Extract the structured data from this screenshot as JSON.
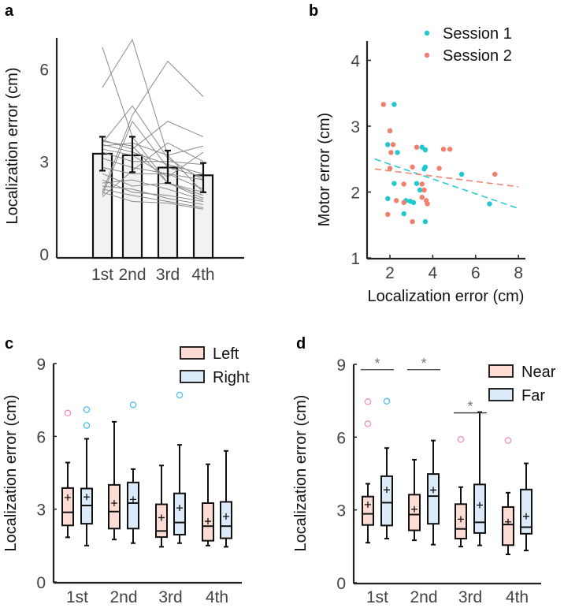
{
  "colors": {
    "session1": "#1fc8cc",
    "session2": "#f07f6c",
    "left_fill": "#fddcd3",
    "right_fill": "#dcebfa",
    "outlier_pink": "#f48cc0",
    "outlier_blue": "#4cc0ee",
    "bar_fill": "#f2f2f2",
    "subject_line": "#8a8a8a"
  },
  "chart_data": [
    {
      "panel": "a",
      "type": "bar",
      "title": "",
      "xlabel": "",
      "ylabel": "Localization error (cm)",
      "ylim": [
        0,
        7
      ],
      "yticks": [
        "0",
        "3",
        "6"
      ],
      "ytick_values": [
        0,
        3,
        6
      ],
      "categories": [
        "1st",
        "2nd",
        "3rd",
        "4th"
      ],
      "values": [
        3.25,
        3.2,
        2.8,
        2.55
      ],
      "error_low": [
        2.7,
        2.65,
        2.3,
        2.0
      ],
      "error_high": [
        3.8,
        3.8,
        3.35,
        2.95
      ],
      "subjects": [
        [
          6.7,
          3.8,
          2.3,
          1.9
        ],
        [
          5.4,
          6.95,
          3.2,
          2.0
        ],
        [
          3.6,
          4.8,
          3.1,
          2.4
        ],
        [
          2.0,
          4.5,
          6.25,
          5.1
        ],
        [
          1.9,
          4.3,
          2.8,
          2.5
        ],
        [
          3.7,
          3.4,
          4.3,
          3.8
        ],
        [
          3.5,
          3.6,
          3.2,
          3.5
        ],
        [
          3.4,
          3.2,
          2.5,
          3.3
        ],
        [
          3.3,
          3.0,
          3.0,
          2.9
        ],
        [
          3.1,
          2.8,
          2.6,
          2.4
        ],
        [
          2.8,
          2.6,
          2.6,
          2.1
        ],
        [
          2.6,
          2.2,
          2.3,
          1.8
        ],
        [
          2.4,
          2.0,
          1.9,
          1.7
        ],
        [
          2.2,
          2.1,
          1.8,
          1.6
        ],
        [
          2.1,
          1.9,
          1.7,
          1.5
        ],
        [
          2.0,
          1.7,
          1.65,
          1.45
        ],
        [
          3.65,
          3.5,
          2.3,
          2.0
        ],
        [
          3.55,
          3.3,
          2.9,
          2.6
        ],
        [
          2.3,
          2.4,
          2.1,
          1.75
        ],
        [
          1.85,
          2.7,
          3.6,
          3.0
        ]
      ]
    },
    {
      "panel": "b",
      "type": "scatter",
      "xlabel": "Localization error (cm)",
      "ylabel": "Motor error (cm)",
      "xlim": [
        1,
        8.4
      ],
      "ylim": [
        1,
        4.3
      ],
      "xticks": [
        "2",
        "4",
        "6",
        "8"
      ],
      "xtick_values": [
        2,
        4,
        6,
        8
      ],
      "yticks": [
        "1",
        "2",
        "3",
        "4"
      ],
      "ytick_values": [
        1,
        2,
        3,
        4
      ],
      "legend_position": "top-right",
      "series": [
        {
          "name": "Session 1",
          "color_key": "session1",
          "points": [
            [
              1.9,
              2.72
            ],
            [
              2.2,
              3.33
            ],
            [
              2.35,
              2.6
            ],
            [
              2.2,
              2.13
            ],
            [
              1.9,
              1.9
            ],
            [
              2.65,
              1.67
            ],
            [
              2.75,
              1.87
            ],
            [
              2.95,
              1.86
            ],
            [
              3.1,
              1.84
            ],
            [
              3.25,
              2.13
            ],
            [
              3.4,
              2.03
            ],
            [
              3.5,
              2.68
            ],
            [
              3.6,
              2.35
            ],
            [
              3.65,
              2.38
            ],
            [
              3.65,
              2.64
            ],
            [
              3.65,
              1.55
            ],
            [
              5.35,
              2.27
            ],
            [
              6.65,
              1.82
            ],
            [
              2.0,
              2.93
            ]
          ],
          "fit": [
            [
              1.3,
              2.5
            ],
            [
              8.0,
              1.75
            ]
          ]
        },
        {
          "name": "Session 2",
          "color_key": "session2",
          "points": [
            [
              1.7,
              3.33
            ],
            [
              2.0,
              2.93
            ],
            [
              2.15,
              2.72
            ],
            [
              2.05,
              2.6
            ],
            [
              2.0,
              2.36
            ],
            [
              1.9,
              1.66
            ],
            [
              2.3,
              1.87
            ],
            [
              2.65,
              2.12
            ],
            [
              2.65,
              1.84
            ],
            [
              3.05,
              2.38
            ],
            [
              3.05,
              1.55
            ],
            [
              3.25,
              2.68
            ],
            [
              3.5,
              2.12
            ],
            [
              3.5,
              1.92
            ],
            [
              3.6,
              2.03
            ],
            [
              3.7,
              1.87
            ],
            [
              3.75,
              1.82
            ],
            [
              4.3,
              2.36
            ],
            [
              4.5,
              2.65
            ],
            [
              4.8,
              2.65
            ],
            [
              6.9,
              2.27
            ]
          ],
          "fit": [
            [
              1.3,
              2.35
            ],
            [
              8.0,
              2.08
            ]
          ]
        }
      ]
    },
    {
      "panel": "c",
      "type": "box",
      "ylabel": "Localization error (cm)",
      "ylim": [
        0,
        9
      ],
      "yticks": [
        "0",
        "3",
        "6",
        "9"
      ],
      "ytick_values": [
        0,
        3,
        6,
        9
      ],
      "categories": [
        "1st",
        "2nd",
        "3rd",
        "4th"
      ],
      "legend_position": "top-right",
      "series": [
        {
          "name": "Left",
          "fill_key": "left_fill",
          "outlier_key": "outlier_pink",
          "boxes": [
            {
              "min": 1.84,
              "q1": 2.33,
              "median": 2.87,
              "q3": 3.87,
              "max": 4.92,
              "mean": 3.48,
              "outliers": [
                6.96
              ]
            },
            {
              "min": 1.75,
              "q1": 2.2,
              "median": 2.9,
              "q3": 4.0,
              "max": 6.6,
              "mean": 3.25,
              "outliers": []
            },
            {
              "min": 1.45,
              "q1": 1.85,
              "median": 2.1,
              "q3": 3.2,
              "max": 4.8,
              "mean": 2.65,
              "outliers": []
            },
            {
              "min": 1.5,
              "q1": 1.7,
              "median": 2.3,
              "q3": 3.25,
              "max": 4.85,
              "mean": 2.5,
              "outliers": []
            }
          ]
        },
        {
          "name": "Right",
          "fill_key": "right_fill",
          "outlier_key": "outlier_blue",
          "boxes": [
            {
              "min": 1.5,
              "q1": 2.4,
              "median": 3.15,
              "q3": 3.85,
              "max": 5.9,
              "mean": 3.5,
              "outliers": [
                7.1,
                6.45
              ]
            },
            {
              "min": 1.6,
              "q1": 2.2,
              "median": 3.25,
              "q3": 4.1,
              "max": 4.65,
              "mean": 3.4,
              "outliers": [
                7.3
              ]
            },
            {
              "min": 1.6,
              "q1": 1.95,
              "median": 2.45,
              "q3": 3.65,
              "max": 5.65,
              "mean": 3.05,
              "outliers": [
                7.7
              ]
            },
            {
              "min": 1.45,
              "q1": 1.8,
              "median": 2.3,
              "q3": 3.3,
              "max": 5.4,
              "mean": 2.7,
              "outliers": []
            }
          ]
        }
      ]
    },
    {
      "panel": "d",
      "type": "box",
      "ylabel": "Localization error (cm)",
      "ylim": [
        0,
        9
      ],
      "yticks": [
        "0",
        "3",
        "6",
        "9"
      ],
      "ytick_values": [
        0,
        3,
        6,
        9
      ],
      "categories": [
        "1st",
        "2nd",
        "3rd",
        "4th"
      ],
      "legend_position": "top-right",
      "significance": [
        {
          "category": 0,
          "level": 8.78,
          "label": "*"
        },
        {
          "category": 1,
          "level": 8.78,
          "label": "*"
        },
        {
          "category": 2,
          "level": 7.0,
          "label": "*"
        }
      ],
      "series": [
        {
          "name": "Near",
          "fill_key": "left_fill",
          "outlier_key": "outlier_pink",
          "boxes": [
            {
              "min": 1.65,
              "q1": 2.38,
              "median": 2.84,
              "q3": 3.55,
              "max": 4.08,
              "mean": 3.22,
              "outliers": [
                7.46,
                6.55
              ]
            },
            {
              "min": 1.75,
              "q1": 2.16,
              "median": 2.81,
              "q3": 3.63,
              "max": 5.07,
              "mean": 3.03,
              "outliers": []
            },
            {
              "min": 1.49,
              "q1": 1.82,
              "median": 2.22,
              "q3": 3.24,
              "max": 3.94,
              "mean": 2.62,
              "outliers": [
                5.91
              ]
            },
            {
              "min": 1.17,
              "q1": 1.55,
              "median": 2.4,
              "q3": 3.12,
              "max": 3.71,
              "mean": 2.51,
              "outliers": [
                5.86
              ]
            }
          ]
        },
        {
          "name": "Far",
          "fill_key": "right_fill",
          "outlier_key": "outlier_blue",
          "boxes": [
            {
              "min": 1.82,
              "q1": 2.36,
              "median": 3.3,
              "q3": 4.39,
              "max": 5.55,
              "mean": 3.83,
              "outliers": [
                7.48
              ]
            },
            {
              "min": 1.57,
              "q1": 2.43,
              "median": 3.57,
              "q3": 4.48,
              "max": 5.86,
              "mean": 3.82,
              "outliers": []
            },
            {
              "min": 1.54,
              "q1": 2.05,
              "median": 2.49,
              "q3": 4.05,
              "max": 7.03,
              "mean": 3.2,
              "outliers": []
            },
            {
              "min": 1.33,
              "q1": 2.02,
              "median": 2.29,
              "q3": 3.84,
              "max": 4.92,
              "mean": 2.74,
              "outliers": []
            }
          ]
        }
      ]
    }
  ],
  "panel_labels": [
    "a",
    "b",
    "c",
    "d"
  ]
}
